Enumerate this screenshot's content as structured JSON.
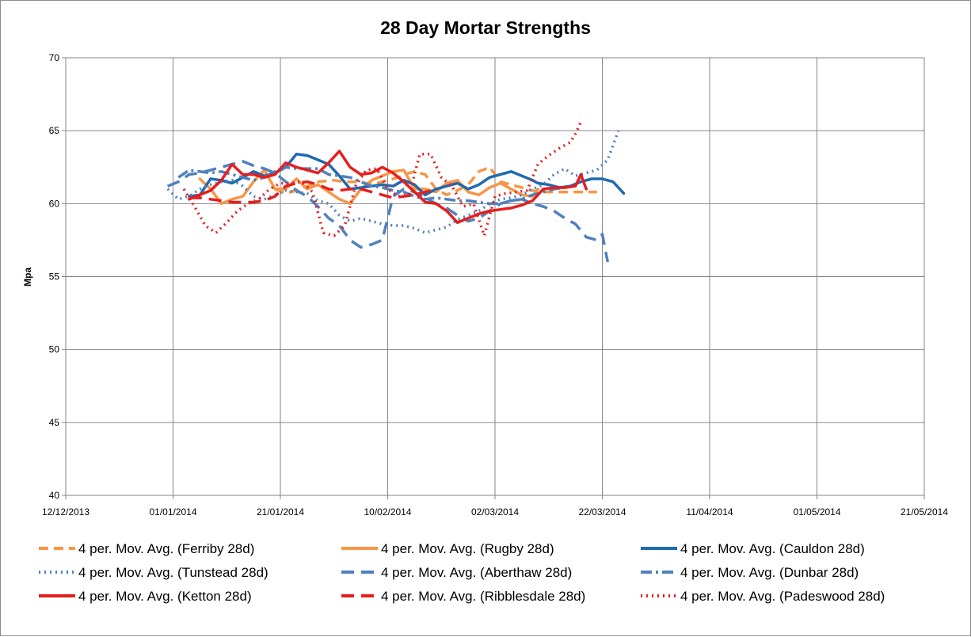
{
  "chart_data": {
    "type": "line",
    "title": "28 Day Mortar Strengths",
    "xlabel": "",
    "ylabel": "Mpa",
    "ylim": [
      40,
      70
    ],
    "yticks": [
      40,
      45,
      50,
      55,
      60,
      65,
      70
    ],
    "xticks": [
      "12/12/2013",
      "01/01/2014",
      "21/01/2014",
      "10/02/2014",
      "02/03/2014",
      "22/03/2014",
      "11/04/2014",
      "01/05/2014",
      "21/05/2014"
    ],
    "x_unit": "days since 12/12/2013",
    "xlim": [
      0,
      160
    ],
    "grid": "horizontal",
    "legend_position": "bottom",
    "series": [
      {
        "name": "4 per. Mov. Avg. (Ferriby 28d)",
        "color": "#f79646",
        "dash": "dash",
        "x": [
          39,
          41,
          43,
          45,
          47,
          50,
          52,
          54,
          56,
          58,
          60,
          62,
          63,
          65,
          67,
          69,
          71,
          73,
          75,
          77,
          79,
          81,
          83,
          86,
          88,
          90,
          92,
          94,
          96,
          99
        ],
        "y": [
          61.0,
          60.7,
          60.9,
          61.2,
          61.5,
          61.6,
          61.5,
          61.5,
          61.4,
          61.4,
          61.6,
          61.8,
          62.0,
          62.2,
          62.0,
          61.0,
          60.6,
          60.9,
          61.3,
          62.2,
          62.5,
          61.5,
          61.3,
          61.0,
          60.8,
          60.8,
          60.8,
          60.8,
          60.8,
          60.8
        ]
      },
      {
        "name": "4 per. Mov. Avg. (Rugby 28d)",
        "color": "#f79646",
        "dash": "solid",
        "x": [
          25,
          27,
          29,
          31,
          33,
          35,
          37,
          39,
          41,
          43,
          45,
          47,
          49,
          51,
          53,
          55,
          57,
          59,
          61,
          63,
          65,
          67,
          69,
          71,
          73,
          75,
          77,
          79,
          81,
          83,
          85,
          87,
          88
        ],
        "y": [
          61.7,
          61.0,
          60.0,
          60.3,
          60.5,
          61.5,
          62.3,
          61.0,
          61.0,
          61.7,
          61.0,
          61.3,
          60.8,
          60.3,
          60.0,
          61.0,
          61.6,
          61.9,
          62.2,
          62.3,
          61.0,
          61.0,
          60.8,
          61.4,
          61.6,
          60.8,
          60.6,
          61.1,
          61.4,
          61.0,
          60.6,
          60.5,
          61.0
        ]
      },
      {
        "name": "4 per. Mov. Avg. (Cauldon 28d)",
        "color": "#1f6ab0",
        "dash": "solid",
        "x": [
          23,
          25,
          27,
          29,
          31,
          33,
          35,
          37,
          39,
          41,
          43,
          45,
          47,
          49,
          51,
          53,
          55,
          57,
          59,
          61,
          63,
          65,
          67,
          69,
          71,
          73,
          75,
          77,
          79,
          81,
          83,
          85,
          87,
          88,
          90,
          92,
          94,
          96,
          98,
          100,
          102,
          104
        ],
        "y": [
          60.5,
          60.6,
          61.7,
          61.6,
          61.4,
          61.8,
          62.2,
          61.9,
          62.1,
          62.5,
          63.4,
          63.3,
          63.0,
          62.7,
          61.9,
          61.0,
          61.1,
          61.2,
          61.3,
          61.2,
          61.6,
          61.3,
          60.6,
          61.0,
          61.2,
          61.4,
          61.0,
          61.3,
          61.8,
          62.0,
          62.2,
          61.9,
          61.6,
          61.4,
          61.3,
          61.1,
          61.2,
          61.5,
          61.7,
          61.7,
          61.5,
          60.7
        ]
      },
      {
        "name": "4 per. Mov. Avg. (Tunstead 28d)",
        "color": "#4f81bd",
        "dash": "dot",
        "x": [
          19,
          21,
          23,
          25,
          27,
          29,
          31,
          33,
          35,
          37,
          39,
          41,
          43,
          45,
          47,
          49,
          51,
          53,
          55,
          57,
          59,
          61,
          63,
          65,
          67,
          69,
          71,
          73,
          75,
          77,
          79,
          81,
          83,
          85,
          87,
          89,
          91,
          93,
          95,
          97,
          99,
          101,
          103
        ],
        "y": [
          61.0,
          60.3,
          60.5,
          61.0,
          61.3,
          61.5,
          61.6,
          61.2,
          60.5,
          60.3,
          60.6,
          60.9,
          60.8,
          60.7,
          60.2,
          60.0,
          59.2,
          58.8,
          59.0,
          58.8,
          58.6,
          58.5,
          58.5,
          58.3,
          58.0,
          58.2,
          58.4,
          58.9,
          59.2,
          59.5,
          60.0,
          60.3,
          60.4,
          60.6,
          61.0,
          61.3,
          62.0,
          62.4,
          61.9,
          62.1,
          62.3,
          63.0,
          65.0
        ]
      },
      {
        "name": "4 per. Mov. Avg. (Aberthaw 28d)",
        "color": "#4f81bd",
        "dash": "longdash",
        "x": [
          19,
          21,
          23,
          25,
          27,
          29,
          31,
          33,
          35,
          37,
          39,
          41,
          43,
          45,
          47,
          49,
          51,
          53,
          55,
          57,
          59,
          61,
          63,
          65,
          67,
          69,
          71,
          73,
          75,
          77,
          79,
          81,
          83,
          85,
          87,
          89,
          91,
          93,
          95,
          97,
          99,
          100,
          101
        ],
        "y": [
          61.2,
          61.5,
          62.0,
          62.1,
          62.3,
          62.5,
          62.7,
          62.9,
          62.6,
          62.4,
          62.1,
          61.5,
          60.9,
          60.5,
          59.8,
          59.0,
          58.5,
          57.5,
          57.0,
          57.2,
          57.5,
          60.5,
          61.0,
          60.8,
          60.4,
          60.0,
          59.7,
          59.2,
          58.8,
          59.0,
          59.5,
          60.0,
          60.2,
          60.3,
          60.0,
          59.8,
          59.5,
          59.0,
          58.6,
          57.7,
          57.5,
          57.9,
          56.0
        ]
      },
      {
        "name": "4 per. Mov. Avg. (Dunbar 28d)",
        "color": "#4f81bd",
        "dash": "dashdot",
        "x": [
          21,
          23,
          25,
          27,
          29,
          31,
          33,
          35,
          37,
          39,
          41,
          43,
          45,
          47,
          49,
          51,
          53,
          55,
          57,
          59,
          61,
          63,
          65,
          67,
          69,
          71,
          73,
          75,
          77,
          79,
          81,
          83,
          85,
          87,
          89,
          91,
          93
        ],
        "y": [
          61.8,
          62.3,
          62.2,
          62.1,
          62.2,
          62.0,
          61.8,
          61.6,
          61.8,
          62.2,
          62.5,
          62.4,
          62.4,
          62.4,
          62.0,
          61.9,
          61.8,
          61.5,
          61.2,
          61.1,
          60.9,
          60.8,
          60.5,
          60.3,
          60.4,
          60.3,
          60.2,
          60.2,
          60.1,
          60.0,
          60.0,
          60.2,
          60.3,
          60.6,
          60.8,
          61.0,
          61.1
        ]
      },
      {
        "name": "4 per. Mov. Avg. (Ketton 28d)",
        "color": "#e61e1e",
        "dash": "solid",
        "x": [
          23,
          25,
          27,
          29,
          31,
          33,
          35,
          37,
          39,
          41,
          43,
          45,
          47,
          49,
          51,
          53,
          55,
          57,
          59,
          61,
          63,
          65,
          67,
          69,
          71,
          73,
          75,
          77,
          79,
          81,
          83,
          85,
          87,
          89,
          91,
          93,
          95,
          96,
          97
        ],
        "y": [
          60.3,
          60.6,
          60.9,
          61.6,
          62.7,
          62.0,
          62.0,
          61.8,
          62.0,
          62.8,
          62.5,
          62.3,
          62.1,
          62.8,
          63.6,
          62.5,
          62.0,
          62.1,
          62.5,
          62.1,
          61.5,
          60.8,
          60.1,
          60.0,
          59.5,
          58.7,
          59.0,
          59.3,
          59.5,
          59.6,
          59.7,
          59.9,
          60.2,
          61.0,
          61.1,
          61.1,
          61.2,
          62.0,
          61.0
        ]
      },
      {
        "name": "4 per. Mov. Avg. (Ribblesdale 28d)",
        "color": "#e61e1e",
        "dash": "longdash",
        "x": [
          23,
          25,
          27,
          29,
          31,
          33,
          35,
          37,
          39,
          41,
          43,
          45,
          47,
          49,
          51,
          53,
          55,
          57,
          59,
          61,
          63,
          65,
          67,
          69
        ],
        "y": [
          60.4,
          60.4,
          60.3,
          60.2,
          60.1,
          60.1,
          60.1,
          60.2,
          60.5,
          61.2,
          61.4,
          61.5,
          61.3,
          61.0,
          60.9,
          61.0,
          61.0,
          60.8,
          60.6,
          60.4,
          60.5,
          60.6,
          60.8,
          61.0
        ]
      },
      {
        "name": "4 per. Mov. Avg. (Padeswood 28d)",
        "color": "#e61e1e",
        "dash": "dot",
        "x": [
          22,
          24,
          26,
          28,
          30,
          32,
          34,
          36,
          38,
          40,
          42,
          44,
          46,
          48,
          50,
          52,
          54,
          56,
          58,
          60,
          62,
          64,
          66,
          68,
          70,
          72,
          74,
          76,
          78,
          80,
          82,
          84,
          86,
          88,
          90,
          92,
          94,
          95,
          96
        ],
        "y": [
          61.0,
          59.8,
          58.5,
          58.0,
          58.7,
          59.5,
          60.0,
          60.3,
          61.0,
          61.4,
          61.4,
          61.5,
          60.8,
          58.0,
          57.8,
          58.5,
          61.2,
          62.3,
          62.4,
          61.0,
          60.5,
          60.6,
          63.4,
          63.4,
          61.8,
          61.2,
          59.8,
          60.0,
          57.8,
          60.5,
          60.7,
          60.8,
          60.9,
          62.7,
          63.3,
          63.8,
          64.2,
          64.8,
          65.6
        ]
      }
    ]
  }
}
